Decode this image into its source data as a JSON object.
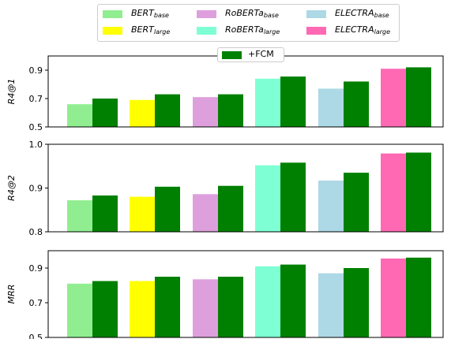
{
  "chart_data": {
    "type": "bar",
    "legend": {
      "entries": [
        {
          "base": "BERT",
          "sub": "base",
          "color": "#90ee90"
        },
        {
          "base": "RoBERTa",
          "sub": "base",
          "color": "#dda0dd"
        },
        {
          "base": "ELECTRA",
          "sub": "base",
          "color": "#add8e6"
        },
        {
          "base": "BERT",
          "sub": "large",
          "color": "#ffff00"
        },
        {
          "base": "RoBERTa",
          "sub": "large",
          "color": "#7fffd4"
        },
        {
          "base": "ELECTRA",
          "sub": "large",
          "color": "#ff69b4"
        }
      ],
      "fcm": {
        "label": "+FCM",
        "color": "#008000"
      }
    },
    "models": [
      "BERT_base",
      "BERT_large",
      "RoBERTa_base",
      "RoBERTa_large",
      "ELECTRA_base",
      "ELECTRA_large"
    ],
    "base_colors": [
      "#90ee90",
      "#ffff00",
      "#dda0dd",
      "#7fffd4",
      "#add8e6",
      "#ff69b4"
    ],
    "fcm_color": "#008000",
    "panels": [
      {
        "ylabel": "R4@1",
        "ylim": [
          0.5,
          1.0
        ],
        "yticks": [
          "0.5",
          "0.7",
          "0.9"
        ],
        "baseline": [
          0.66,
          0.69,
          0.71,
          0.84,
          0.77,
          0.91
        ],
        "fcm": [
          0.7,
          0.73,
          0.73,
          0.855,
          0.82,
          0.92
        ]
      },
      {
        "ylabel": "R4@2",
        "ylim": [
          0.8,
          1.0
        ],
        "yticks": [
          "0.8",
          "0.9",
          "1.0"
        ],
        "baseline": [
          0.872,
          0.88,
          0.886,
          0.952,
          0.917,
          0.979
        ],
        "fcm": [
          0.883,
          0.903,
          0.905,
          0.958,
          0.935,
          0.981
        ]
      },
      {
        "ylabel": "MRR",
        "ylim": [
          0.5,
          1.0
        ],
        "yticks": [
          "0.5",
          "0.7",
          "0.9"
        ],
        "baseline": [
          0.81,
          0.825,
          0.835,
          0.91,
          0.87,
          0.955
        ],
        "fcm": [
          0.825,
          0.85,
          0.85,
          0.92,
          0.9,
          0.96
        ]
      }
    ]
  }
}
